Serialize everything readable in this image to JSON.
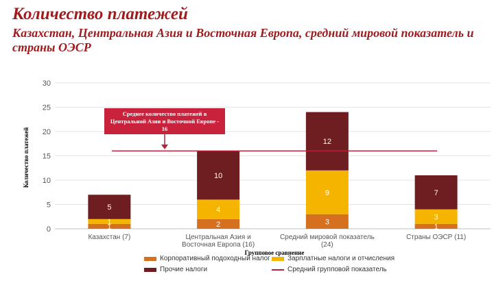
{
  "header": {
    "title": "Количество платежей",
    "subtitle": "Казахстан, Центральная Азия и Восточная Европа, средний мировой показатель и страны ОЭСР"
  },
  "annotation": {
    "text": "Среднее количество платежей в Центральной Азии и Восточной Европе - 16"
  },
  "colors": {
    "corporate": "#d4701e",
    "payroll": "#f5b400",
    "other": "#6e1d21",
    "average_line": "#b5223a",
    "callout": "#c8223c"
  },
  "chart_data": {
    "type": "bar",
    "stacked": true,
    "title": "Количество платежей",
    "xlabel": "Групповое сравнение",
    "ylabel": "Количество платежей",
    "ylim": [
      0,
      30
    ],
    "yticks": [
      0,
      5,
      10,
      15,
      20,
      25,
      30
    ],
    "grid": true,
    "legend_position": "bottom",
    "categories": [
      "Казахстан (7)",
      "Центральная Азия и Восточная Европа (16)",
      "Средний мировой показатель (24)",
      "Страны ОЭСР (11)"
    ],
    "series": [
      {
        "name": "Корпоративный подоходный налог",
        "values": [
          1,
          2,
          3,
          1
        ]
      },
      {
        "name": "Зарплатные налоги и отчисления",
        "values": [
          1,
          4,
          9,
          3
        ]
      },
      {
        "name": "Прочие налоги",
        "values": [
          5,
          10,
          12,
          7
        ]
      }
    ],
    "reference_line": {
      "name": "Средний групповой показатель",
      "value": 16
    }
  }
}
